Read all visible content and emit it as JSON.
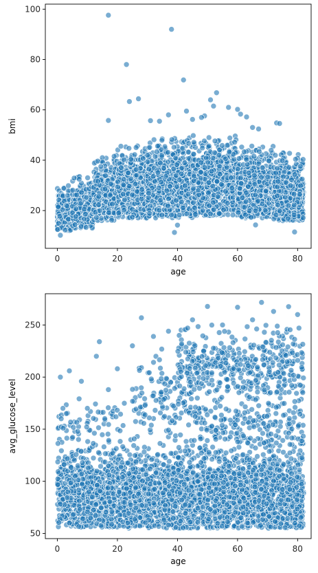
{
  "chart_data": [
    {
      "type": "scatter",
      "title": "",
      "xlabel": "age",
      "ylabel": "bmi",
      "xlim": [
        -4,
        84.5
      ],
      "ylim": [
        5,
        102
      ],
      "x_ticks": [
        0,
        20,
        40,
        60,
        80
      ],
      "y_ticks": [
        20,
        40,
        60,
        80,
        100
      ],
      "point_color": "#1f77b4",
      "point_opacity": 0.6,
      "grid": false,
      "outliers": [
        {
          "x": 17,
          "y": 97.6
        },
        {
          "x": 38,
          "y": 92.0
        },
        {
          "x": 23,
          "y": 78.0
        },
        {
          "x": 42,
          "y": 71.9
        },
        {
          "x": 53,
          "y": 66.8
        },
        {
          "x": 24,
          "y": 63.3
        },
        {
          "x": 27,
          "y": 64.4
        },
        {
          "x": 51,
          "y": 64.0
        },
        {
          "x": 52,
          "y": 61.5
        },
        {
          "x": 57,
          "y": 61.0
        },
        {
          "x": 60,
          "y": 60.2
        },
        {
          "x": 43,
          "y": 59.5
        },
        {
          "x": 37,
          "y": 58.0
        },
        {
          "x": 61,
          "y": 58.3
        },
        {
          "x": 49,
          "y": 57.6
        },
        {
          "x": 48,
          "y": 57.0
        },
        {
          "x": 34,
          "y": 55.5
        },
        {
          "x": 17,
          "y": 55.8
        },
        {
          "x": 31,
          "y": 55.7
        },
        {
          "x": 73,
          "y": 54.8
        },
        {
          "x": 74,
          "y": 54.6
        },
        {
          "x": 63,
          "y": 57.2
        },
        {
          "x": 65,
          "y": 53.0
        },
        {
          "x": 67,
          "y": 52.4
        },
        {
          "x": 45,
          "y": 56.2
        },
        {
          "x": 39,
          "y": 11.3
        },
        {
          "x": 79,
          "y": 11.5
        },
        {
          "x": 1,
          "y": 10.2
        },
        {
          "x": 40,
          "y": 14.2
        },
        {
          "x": 66,
          "y": 14.3
        }
      ],
      "density_bands": [
        {
          "x_from": 0,
          "x_to": 5,
          "y_low": 12,
          "y_high": 30,
          "count": 260
        },
        {
          "x_from": 5,
          "x_to": 12,
          "y_low": 13,
          "y_high": 34,
          "count": 240
        },
        {
          "x_from": 12,
          "x_to": 20,
          "y_low": 16,
          "y_high": 42,
          "count": 320
        },
        {
          "x_from": 20,
          "x_to": 30,
          "y_low": 17,
          "y_high": 46,
          "count": 440
        },
        {
          "x_from": 30,
          "x_to": 45,
          "y_low": 17,
          "y_high": 49,
          "count": 700
        },
        {
          "x_from": 45,
          "x_to": 60,
          "y_low": 18,
          "y_high": 50,
          "count": 720
        },
        {
          "x_from": 60,
          "x_to": 72,
          "y_low": 17,
          "y_high": 46,
          "count": 540
        },
        {
          "x_from": 72,
          "x_to": 82,
          "y_low": 16,
          "y_high": 43,
          "count": 560
        }
      ]
    },
    {
      "type": "scatter",
      "title": "",
      "xlabel": "age",
      "ylabel": "avg_glucose_level",
      "xlim": [
        -4,
        84.5
      ],
      "ylim": [
        45,
        280
      ],
      "x_ticks": [
        0,
        20,
        40,
        60,
        80
      ],
      "y_ticks": [
        50,
        100,
        150,
        200,
        250
      ],
      "point_color": "#1f77b4",
      "point_opacity": 0.6,
      "grid": false,
      "outliers": [
        {
          "x": 68,
          "y": 271.7
        },
        {
          "x": 50,
          "y": 267.8
        },
        {
          "x": 60,
          "y": 267.0
        },
        {
          "x": 77,
          "y": 267.6
        },
        {
          "x": 28,
          "y": 256.9
        },
        {
          "x": 45,
          "y": 255.0
        },
        {
          "x": 72,
          "y": 263.0
        },
        {
          "x": 80,
          "y": 260.0
        },
        {
          "x": 14,
          "y": 234.0
        },
        {
          "x": 32,
          "y": 239.0
        },
        {
          "x": 25,
          "y": 230.0
        },
        {
          "x": 13,
          "y": 220.0
        },
        {
          "x": 4,
          "y": 206.0
        },
        {
          "x": 1,
          "y": 200.0
        },
        {
          "x": 20,
          "y": 208.0
        },
        {
          "x": 8,
          "y": 196.0
        },
        {
          "x": 37,
          "y": 244.0
        },
        {
          "x": 55,
          "y": 250.0
        },
        {
          "x": 65,
          "y": 255.0
        },
        {
          "x": 17,
          "y": 188.0
        },
        {
          "x": 10,
          "y": 170.0
        },
        {
          "x": 3,
          "y": 165.0
        }
      ],
      "density_bands": [
        {
          "x_from": 0,
          "x_to": 10,
          "y_low": 56,
          "y_high": 130,
          "count": 420
        },
        {
          "x_from": 10,
          "x_to": 20,
          "y_low": 56,
          "y_high": 135,
          "count": 380
        },
        {
          "x_from": 20,
          "x_to": 35,
          "y_low": 55,
          "y_high": 135,
          "count": 560
        },
        {
          "x_from": 35,
          "x_to": 50,
          "y_low": 55,
          "y_high": 135,
          "count": 640
        },
        {
          "x_from": 50,
          "x_to": 65,
          "y_low": 55,
          "y_high": 135,
          "count": 620
        },
        {
          "x_from": 65,
          "x_to": 82,
          "y_low": 55,
          "y_high": 135,
          "count": 700
        },
        {
          "x_from": 0,
          "x_to": 25,
          "y_low": 135,
          "y_high": 185,
          "count": 70
        },
        {
          "x_from": 25,
          "x_to": 45,
          "y_low": 135,
          "y_high": 230,
          "count": 130
        },
        {
          "x_from": 45,
          "x_to": 82,
          "y_low": 135,
          "y_high": 185,
          "count": 230
        },
        {
          "x_from": 40,
          "x_to": 82,
          "y_low": 185,
          "y_high": 250,
          "count": 420
        }
      ]
    }
  ]
}
